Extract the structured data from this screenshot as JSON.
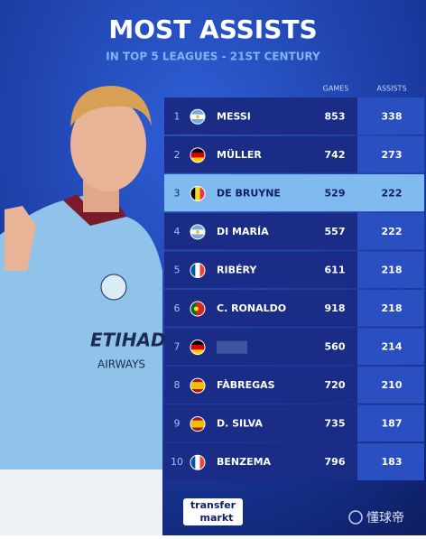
{
  "header": {
    "title": "MOST ASSISTS",
    "subtitle": "IN TOP 5 LEAGUES - 21ST CENTURY"
  },
  "table": {
    "columns": [
      "GAMES",
      "ASSISTS"
    ],
    "rows": [
      [
        1,
        "MESSI",
        853,
        338
      ],
      [
        2,
        "MÜLLER",
        742,
        273
      ],
      [
        3,
        "DE BRUYNE",
        529,
        222
      ],
      [
        4,
        "DI MARÍA",
        557,
        222
      ],
      [
        5,
        "RIBÉRY",
        611,
        218
      ],
      [
        6,
        "C. RONALDO",
        918,
        218
      ],
      [
        7,
        null,
        560,
        214
      ],
      [
        8,
        "FÀBREGAS",
        720,
        210
      ],
      [
        9,
        "D. SILVA",
        735,
        187
      ],
      [
        10,
        "BENZEMA",
        796,
        183
      ]
    ]
  },
  "footer": {
    "logo": [
      "transfer",
      "markt"
    ],
    "watermark": "懂球帝"
  }
}
